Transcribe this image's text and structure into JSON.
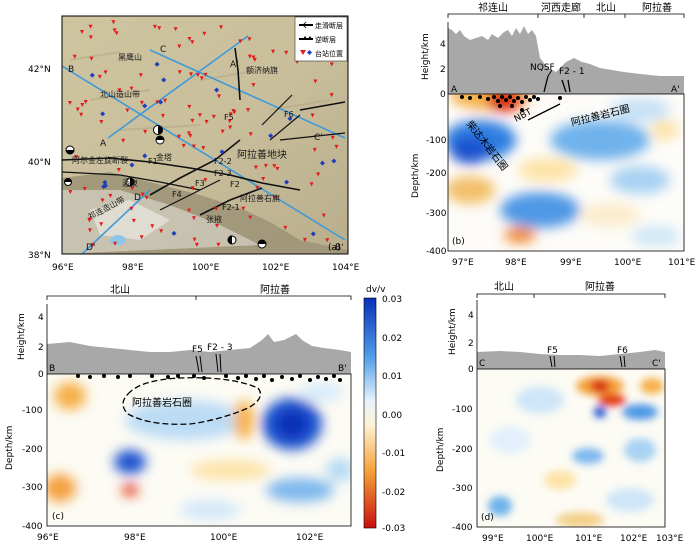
{
  "figure": {
    "panel_a": {
      "label": "(a)",
      "y_ticks": [
        "42°N",
        "40°N",
        "38°N"
      ],
      "x_ticks": [
        "96°E",
        "98°E",
        "100°E",
        "102°E",
        "104°E"
      ],
      "legend": {
        "strike_slip": "走滑断层",
        "thrust": "逆断层",
        "station": "台站位置"
      },
      "map_labels": {
        "heilongshan": "黑鹰山",
        "ejina": "额济纳旗",
        "beishan_belt": "北山造山带",
        "alxa_block": "阿拉善地块",
        "altyn_fault": "阿尔金左旋断裂",
        "jintai": "金塔",
        "jiuquan": "酒泉",
        "alxa_right": "阿拉善右旗",
        "qilian_belt": "祁连造山带",
        "zhangye": "张掖"
      },
      "fault_labels": {
        "F1": "F1",
        "F2": "F2",
        "F2_1": "F2-1",
        "F2_2": "F2-2",
        "F2_3": "F2-3",
        "F3": "F3",
        "F4": "F4",
        "F5": "F5",
        "F6": "F6"
      },
      "profile_ends": {
        "A": "A",
        "A_p": "A'",
        "B": "B",
        "B_p": "B'",
        "C": "C",
        "C_p": "C'",
        "D": "D",
        "D_p": "D'"
      }
    },
    "panel_b": {
      "label": "(b)",
      "regions": [
        "祁连山",
        "河西走廊",
        "北山",
        "阿拉善"
      ],
      "y_top_label": "Height/km",
      "y_top_ticks": [
        "0",
        "2",
        "4"
      ],
      "y_label": "Depth/km",
      "y_ticks": [
        "0",
        "-100",
        "-200",
        "-300",
        "-400"
      ],
      "x_ticks": [
        "97°E",
        "98°E",
        "99°E",
        "100°E",
        "101°E"
      ],
      "faults": [
        "NQSF",
        "F2 - 1",
        "NBT"
      ],
      "bodies": [
        "柴达木岩石圈",
        "阿拉善岩石圈"
      ],
      "ends": [
        "A",
        "A'"
      ]
    },
    "panel_c": {
      "label": "(c)",
      "regions": [
        "北山",
        "阿拉善"
      ],
      "y_top_label": "Height/km",
      "y_top_ticks": [
        "0",
        "2",
        "4"
      ],
      "y_label": "Depth/km",
      "y_ticks": [
        "0",
        "-100",
        "-200",
        "-300",
        "-400"
      ],
      "x_ticks": [
        "96°E",
        "98°E",
        "100°E",
        "102°E"
      ],
      "faults": [
        "F5",
        "F2 - 3"
      ],
      "bodies": [
        "阿拉善岩石圈"
      ],
      "ends": [
        "B",
        "B'"
      ]
    },
    "panel_d": {
      "label": "(d)",
      "regions": [
        "北山",
        "阿拉善"
      ],
      "y_top_label": "Height/km",
      "y_top_ticks": [
        "0",
        "2",
        "4"
      ],
      "y_label": "Depth/km",
      "y_ticks": [
        "0",
        "-100",
        "-200",
        "-300",
        "-400"
      ],
      "x_ticks": [
        "99°E",
        "100°E",
        "101°E",
        "102°E",
        "103°E"
      ],
      "faults": [
        "F5",
        "F6"
      ],
      "ends": [
        "C",
        "C'"
      ]
    },
    "colorbar": {
      "title": "dv/v",
      "ticks": [
        "0.03",
        "0.02",
        "0.01",
        "0.00",
        "-0.01",
        "-0.02",
        "-0.03"
      ]
    },
    "colors": {
      "blue": "#1f4fd0",
      "red": "#d01010",
      "profile_line": "#3f9ad8",
      "topo": "#a8a8a8"
    }
  }
}
